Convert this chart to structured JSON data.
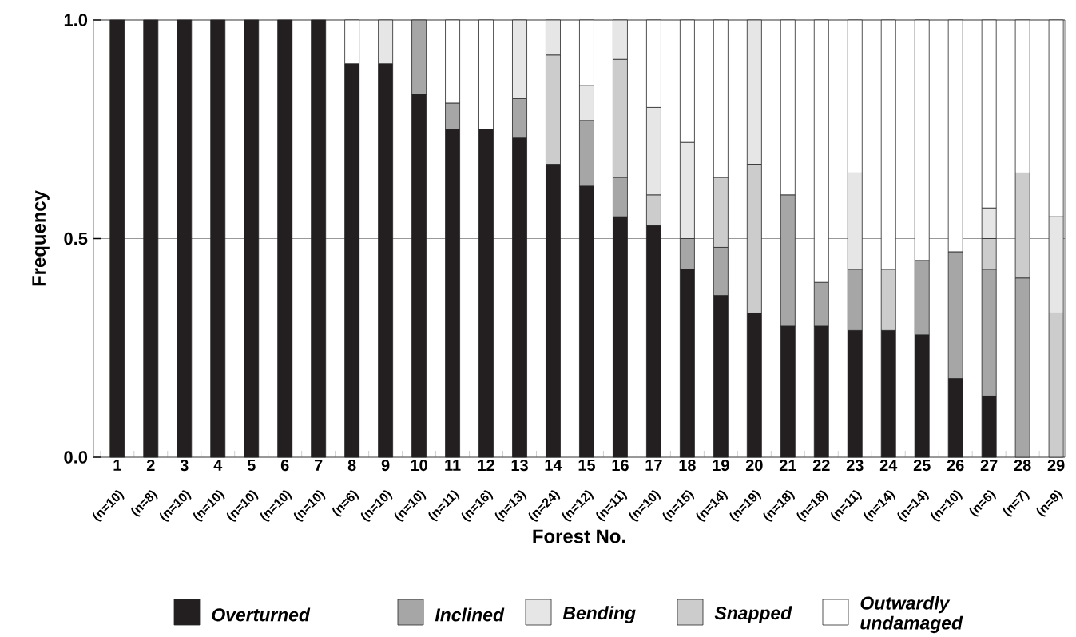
{
  "chart_data": {
    "type": "bar",
    "stacked": true,
    "xlabel": "Forest No.",
    "ylabel": "Frequency",
    "categories": [
      "1",
      "2",
      "3",
      "4",
      "5",
      "6",
      "7",
      "8",
      "9",
      "10",
      "11",
      "12",
      "13",
      "14",
      "15",
      "16",
      "17",
      "18",
      "19",
      "20",
      "21",
      "22",
      "23",
      "24",
      "25",
      "26",
      "27",
      "28",
      "29"
    ],
    "series": [
      {
        "name": "Overturned",
        "color": "#231f20",
        "values": [
          1,
          1,
          1,
          1,
          1,
          1,
          1,
          0.9,
          0.9,
          0.83,
          0.75,
          0.75,
          0.73,
          0.67,
          0.62,
          0.55,
          0.53,
          0.43,
          0.37,
          0.33,
          0.3,
          0.3,
          0.29,
          0.29,
          0.28,
          0.18,
          0.14,
          0,
          0
        ]
      },
      {
        "name": "Inclined",
        "color": "#a6a6a6",
        "values": [
          0,
          0,
          0,
          0,
          0,
          0,
          0,
          0,
          0,
          0.17,
          0.06,
          0,
          0.09,
          0,
          0.15,
          0.09,
          0,
          0.07,
          0.11,
          0,
          0.3,
          0.1,
          0.14,
          0,
          0.17,
          0.29,
          0.29,
          0.41,
          0
        ]
      },
      {
        "name": "Snapped",
        "color": "#cccccc",
        "values": [
          0,
          0,
          0,
          0,
          0,
          0,
          0,
          0,
          0,
          0,
          0,
          0,
          0,
          0.25,
          0,
          0.27,
          0.07,
          0,
          0.16,
          0.34,
          0,
          0,
          0,
          0.14,
          0,
          0,
          0.07,
          0.24,
          0.33
        ]
      },
      {
        "name": "Bending",
        "color": "#e6e6e6",
        "values": [
          0,
          0,
          0,
          0,
          0,
          0,
          0,
          0,
          0.1,
          0,
          0,
          0,
          0.18,
          0.08,
          0.08,
          0.09,
          0.2,
          0.22,
          0,
          0.33,
          0,
          0,
          0.22,
          0,
          0,
          0,
          0.07,
          0,
          0.22
        ]
      },
      {
        "name": "Outwardly undamaged",
        "color": "#ffffff",
        "values": [
          0,
          0,
          0,
          0,
          0,
          0,
          0,
          0.1,
          0,
          0,
          0.19,
          0.25,
          0,
          0,
          0.15,
          0,
          0.2,
          0.28,
          0.36,
          0,
          0.4,
          0.6,
          0.35,
          0.57,
          0.55,
          0.53,
          0.43,
          0.35,
          0.45
        ]
      }
    ],
    "ylim": [
      0,
      1
    ],
    "yticks": [
      {
        "value": 0,
        "label": "0.0"
      },
      {
        "value": 0.5,
        "label": "0.5"
      },
      {
        "value": 1,
        "label": "1.0"
      }
    ],
    "grid": "y",
    "legend": "bottom",
    "annotations": [
      "(n=10)",
      "(n=8)",
      "(n=10)",
      "(n=10)",
      "(n=10)",
      "(n=10)",
      "(n=10)",
      "(n=6)",
      "(n=10)",
      "(n=10)",
      "(n=11)",
      "(n=16)",
      "(n=13)",
      "(n=24)",
      "(n=12)",
      "(n=11)",
      "(n=10)",
      "(n=15)",
      "(n=14)",
      "(n=19)",
      "(n=18)",
      "(n=18)",
      "(n=11)",
      "(n=14)",
      "(n=14)",
      "(n=10)",
      "(n=6)",
      "(n=7)",
      "(n=9)"
    ]
  }
}
